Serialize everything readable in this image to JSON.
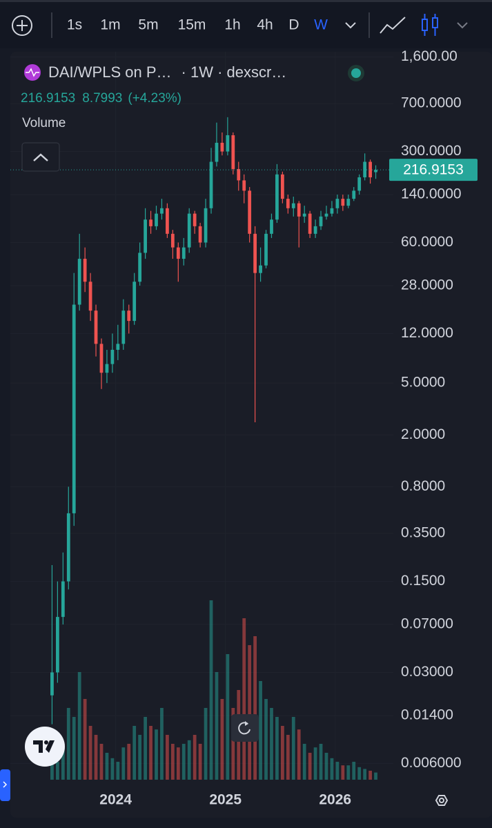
{
  "toolbar": {
    "intervals": [
      "1s",
      "1m",
      "5m",
      "15m",
      "1h",
      "4h",
      "D",
      "W"
    ],
    "active": 7
  },
  "chart_data": {
    "type": "candlestick",
    "title": "DAI/WPLS on P…",
    "subtitle": "· 1W · dexscr…",
    "change": 8.7993,
    "change_label": "(+4.23%)",
    "volume_label": "Volume",
    "up_color": "#26a69a",
    "down_color": "#ef5350",
    "log_y": true,
    "grid": true,
    "xlim": [
      2023.04,
      2026.53
    ],
    "xticks": [
      2024,
      2025,
      2026
    ],
    "ylim": [
      0.0045,
      1750
    ],
    "yticks": [
      {
        "value": 1600,
        "label": "1,600.00"
      },
      {
        "value": 700,
        "label": "700.0000"
      },
      {
        "value": 300,
        "label": "300.0000"
      },
      {
        "value": 140,
        "label": "140.0000"
      },
      {
        "value": 60,
        "label": "60.0000"
      },
      {
        "value": 28,
        "label": "28.0000"
      },
      {
        "value": 12,
        "label": "12.0000"
      },
      {
        "value": 5,
        "label": "5.0000"
      },
      {
        "value": 2,
        "label": "2.0000"
      },
      {
        "value": 0.8,
        "label": "0.8000"
      },
      {
        "value": 0.35,
        "label": "0.3500"
      },
      {
        "value": 0.15,
        "label": "0.1500"
      },
      {
        "value": 0.07,
        "label": "0.07000"
      },
      {
        "value": 0.03,
        "label": "0.03000"
      },
      {
        "value": 0.014,
        "label": "0.01400"
      },
      {
        "value": 0.006,
        "label": "0.006000"
      }
    ],
    "x": [
      2023.42,
      2023.47,
      2023.52,
      2023.57,
      2023.62,
      2023.67,
      2023.72,
      2023.77,
      2023.82,
      2023.87,
      2023.92,
      2023.97,
      2024.02,
      2024.07,
      2024.12,
      2024.17,
      2024.22,
      2024.27,
      2024.32,
      2024.37,
      2024.42,
      2024.47,
      2024.52,
      2024.57,
      2024.62,
      2024.67,
      2024.72,
      2024.77,
      2024.82,
      2024.87,
      2024.92,
      2024.97,
      2025.02,
      2025.07,
      2025.12,
      2025.17,
      2025.22,
      2025.27,
      2025.32,
      2025.37,
      2025.42,
      2025.47,
      2025.52,
      2025.57,
      2025.62,
      2025.67,
      2025.72,
      2025.77,
      2025.82,
      2025.87,
      2025.92,
      2025.97,
      2026.02,
      2026.07,
      2026.12,
      2026.17,
      2026.22,
      2026.27,
      2026.32,
      2026.37
    ],
    "open": [
      0.02,
      0.03,
      0.08,
      0.15,
      0.5,
      20,
      45,
      30,
      18,
      10,
      6,
      7,
      9,
      10,
      18,
      15,
      30,
      50,
      90,
      80,
      100,
      110,
      70,
      55,
      45,
      55,
      100,
      80,
      60,
      110,
      250,
      350,
      300,
      400,
      220,
      180,
      150,
      70,
      35,
      40,
      70,
      90,
      200,
      130,
      110,
      120,
      95,
      100,
      70,
      80,
      95,
      100,
      110,
      130,
      115,
      130,
      150,
      190,
      250,
      208.116
    ],
    "high": [
      0.2,
      0.15,
      0.25,
      0.8,
      35,
      70,
      55,
      35,
      20,
      11,
      9,
      12,
      14,
      22,
      20,
      35,
      60,
      110,
      105,
      115,
      130,
      120,
      75,
      60,
      65,
      110,
      105,
      85,
      130,
      320,
      500,
      420,
      550,
      420,
      250,
      200,
      160,
      80,
      55,
      75,
      100,
      240,
      210,
      140,
      135,
      125,
      115,
      105,
      90,
      105,
      115,
      125,
      140,
      140,
      140,
      160,
      200,
      290,
      260,
      235
    ],
    "low": [
      0.012,
      0.025,
      0.07,
      0.13,
      0.4,
      18,
      25,
      15,
      8,
      4.5,
      5,
      6,
      7.5,
      9,
      12,
      14,
      28,
      45,
      70,
      75,
      90,
      65,
      45,
      30,
      40,
      50,
      70,
      55,
      55,
      100,
      230,
      280,
      280,
      200,
      150,
      120,
      60,
      2.5,
      30,
      38,
      65,
      85,
      120,
      100,
      95,
      55,
      85,
      65,
      65,
      75,
      90,
      95,
      100,
      105,
      110,
      125,
      140,
      180,
      170,
      185
    ],
    "close": [
      0.03,
      0.08,
      0.15,
      0.5,
      20,
      45,
      30,
      18,
      10,
      6,
      7,
      9,
      10,
      18,
      15,
      30,
      50,
      90,
      80,
      100,
      110,
      70,
      55,
      45,
      55,
      100,
      80,
      60,
      110,
      250,
      350,
      300,
      400,
      220,
      180,
      150,
      70,
      35,
      40,
      70,
      90,
      200,
      130,
      110,
      120,
      95,
      100,
      70,
      80,
      95,
      100,
      110,
      130,
      115,
      130,
      150,
      190,
      250,
      190,
      216.9153
    ],
    "volume": [
      15,
      10,
      20,
      40,
      35,
      60,
      45,
      30,
      25,
      20,
      15,
      12,
      10,
      18,
      20,
      30,
      25,
      35,
      30,
      28,
      40,
      25,
      20,
      18,
      20,
      22,
      25,
      20,
      40,
      100,
      60,
      45,
      70,
      40,
      50,
      90,
      75,
      80,
      55,
      45,
      40,
      35,
      30,
      25,
      35,
      28,
      20,
      15,
      18,
      20,
      15,
      12,
      10,
      8,
      8,
      10,
      7,
      6,
      5,
      4
    ]
  }
}
